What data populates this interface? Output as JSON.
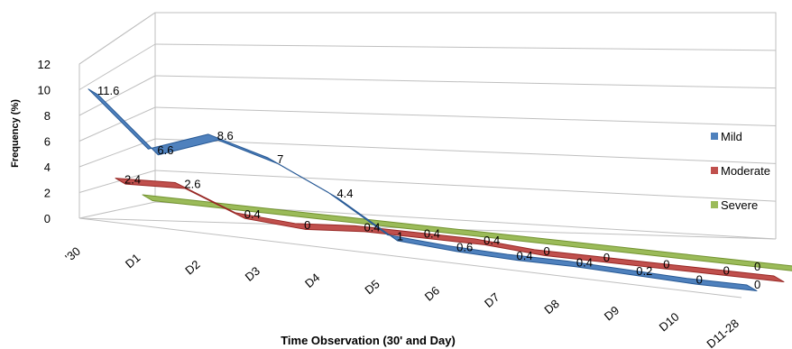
{
  "chart_data": {
    "type": "line",
    "three_d": true,
    "title": "",
    "xlabel": "Time Observation (30' and Day)",
    "ylabel": "Frequency (%)",
    "ylim": [
      0,
      12
    ],
    "yticks": [
      "0",
      "2",
      "4",
      "6",
      "8",
      "10",
      "12"
    ],
    "categories": [
      "'30",
      "D1",
      "D2",
      "D3",
      "D4",
      "D5",
      "D6",
      "D7",
      "D8",
      "D9",
      "D10",
      "D11-28"
    ],
    "series": [
      {
        "name": "Mild",
        "color": "#4f81bd",
        "values": [
          11.6,
          6.6,
          8.6,
          7,
          4.4,
          1,
          0.6,
          0.4,
          0.4,
          0.2,
          0,
          0
        ],
        "labels": [
          "11.6",
          "6.6",
          "8.6",
          "7",
          "4.4",
          "1",
          "0.6",
          "0.4",
          "0.4",
          "0.2",
          "0",
          "0"
        ]
      },
      {
        "name": "Moderate",
        "color": "#c0504d",
        "values": [
          2.4,
          2.6,
          0.4,
          0,
          0.4,
          0.4,
          0.4,
          0,
          0,
          0,
          0,
          0
        ],
        "labels": [
          "2.4",
          "2.6",
          "0.4",
          "0",
          "0.4",
          "0.4",
          "0.4",
          "0",
          "0",
          "0",
          "0",
          "0"
        ]
      },
      {
        "name": "Severe",
        "color": "#9bbb59",
        "values": [
          0,
          0,
          0,
          0,
          0,
          0,
          0,
          0,
          0,
          0,
          0,
          0
        ],
        "labels": []
      }
    ],
    "grid": true,
    "legend_position": "right"
  }
}
